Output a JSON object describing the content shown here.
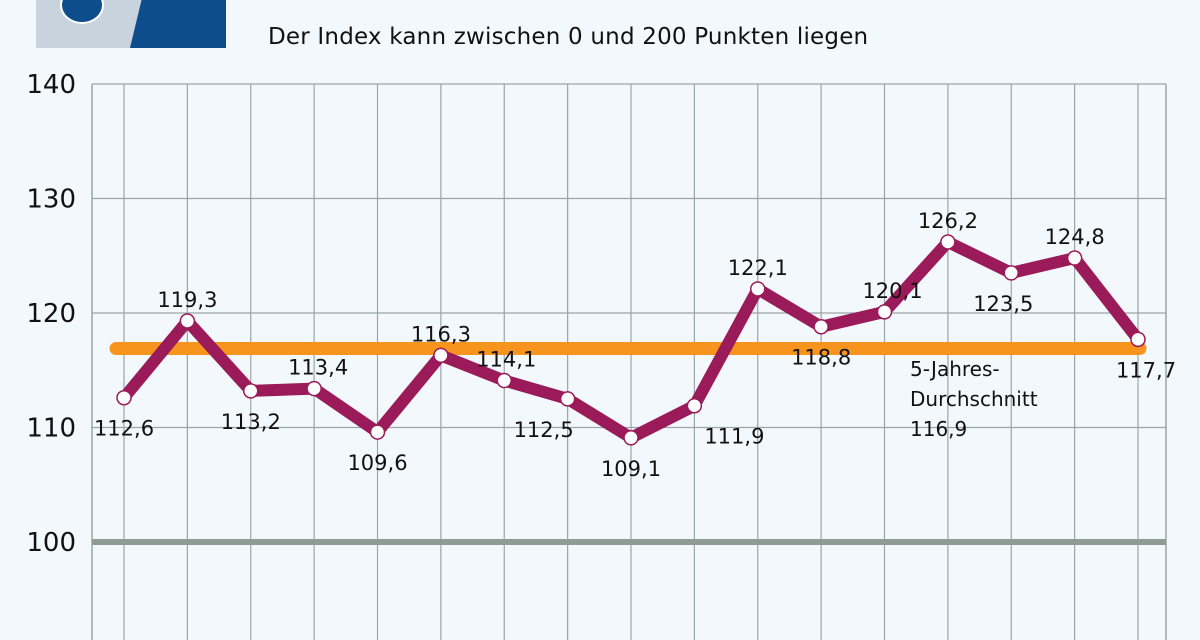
{
  "subtitle": "Der Index kann zwischen 0 und 200 Punkten liegen",
  "chart_data": {
    "type": "line",
    "title": "",
    "subtitle": "Der Index kann zwischen 0 und 200 Punkten liegen",
    "ylim": [
      100,
      140
    ],
    "yticks": [
      100,
      110,
      120,
      130,
      140
    ],
    "grid": true,
    "series": [
      {
        "values": [
          112.6,
          119.3,
          113.2,
          113.4,
          109.6,
          116.3,
          114.1,
          112.5,
          109.1,
          111.9,
          122.1,
          118.8,
          120.1,
          126.2,
          123.5,
          124.8,
          117.7
        ],
        "labels": [
          "112,6",
          "119,3",
          "113,2",
          "113,4",
          "109,6",
          "116,3",
          "114,1",
          "112,5",
          "109,1",
          "111,9",
          "122,1",
          "118,8",
          "120,1",
          "126,2",
          "123,5",
          "124,8",
          "117,7"
        ],
        "color": "#9b1b5a"
      }
    ],
    "reference_line": {
      "value": 116.9,
      "label_lines": [
        "5-Jahres-",
        "Durchschnitt",
        "116,9"
      ],
      "color": "#f7941d"
    },
    "baseline_color": "#8f9c96"
  }
}
